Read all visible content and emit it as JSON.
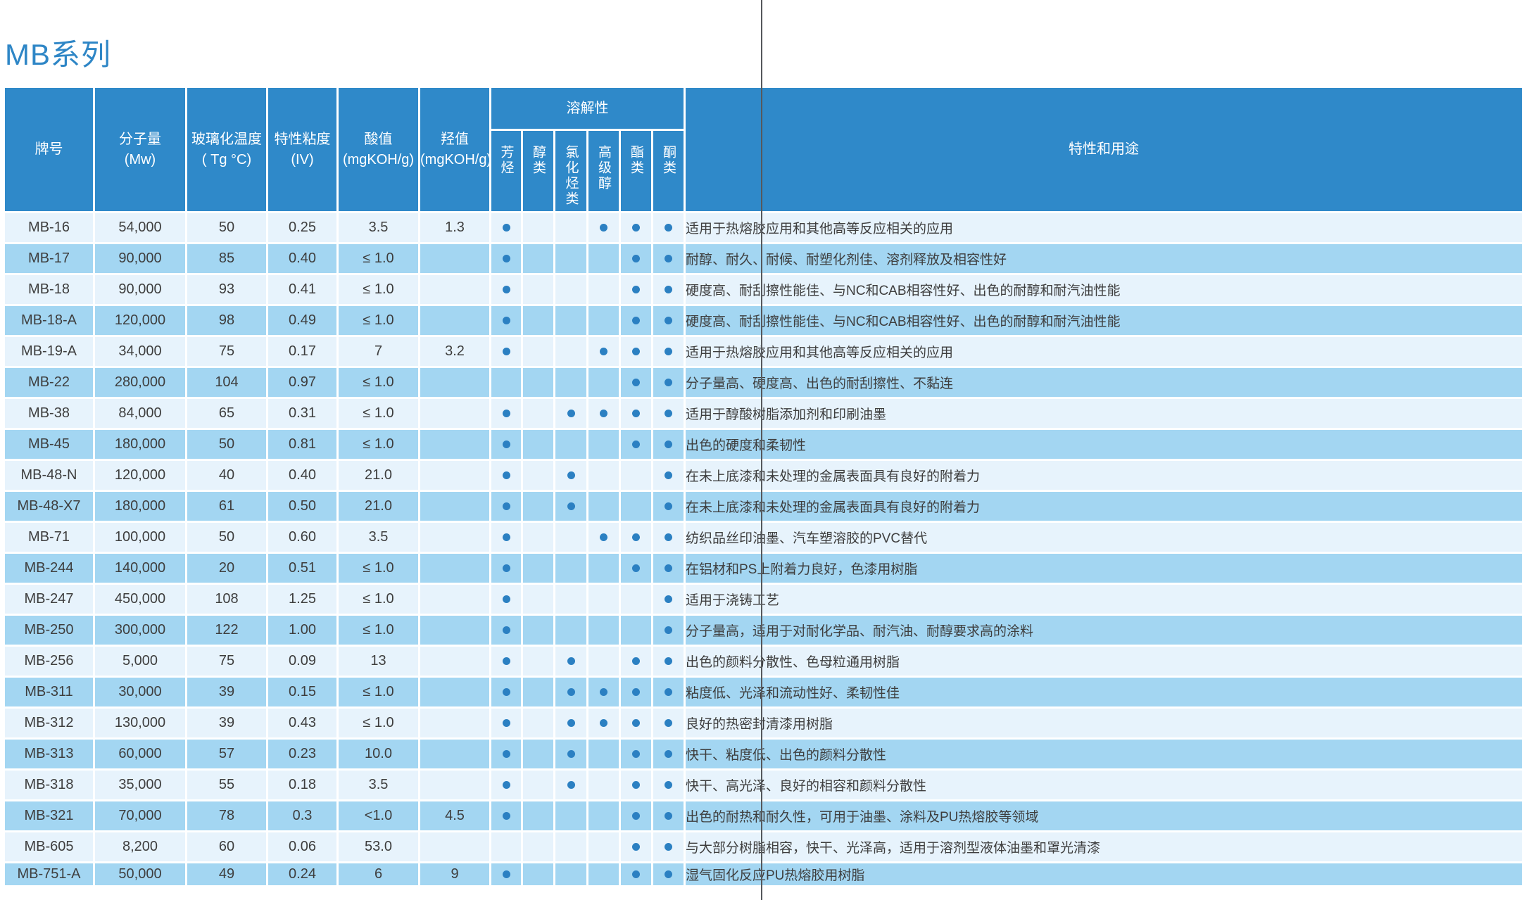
{
  "title": "MB系列",
  "colors": {
    "header_blue": "#2F89C9",
    "row_light": "#E7F3FC",
    "row_dark": "#A3D6F2",
    "dot_blue": "#2B80C2",
    "title_blue": "#2E86C6",
    "fold_line_gray": "#55585C",
    "cell_text": "#3E3E3E"
  },
  "table": {
    "headers": {
      "grade": "牌号",
      "mw": "分子量\n(Mw)",
      "tg": "玻璃化温度\n( Tg °C)",
      "iv": "特性粘度\n(IV)",
      "acid": "酸值\n(mgKOH/g)",
      "oh": "羟值\n(mgKOH/g)",
      "solubility": "溶解性",
      "solubility_cols": [
        "芳烃",
        "醇类",
        "氯化烃类",
        "高级醇",
        "酯类",
        "酮类"
      ],
      "uses": "特性和用途"
    },
    "rows": [
      {
        "grade": "MB-16",
        "mw": "54,000",
        "tg": "50",
        "iv": "0.25",
        "acid": "3.5",
        "oh": "1.3",
        "sol": [
          1,
          0,
          0,
          1,
          1,
          1
        ],
        "use": "适用于热熔胶应用和其他高等反应相关的应用"
      },
      {
        "grade": "MB-17",
        "mw": "90,000",
        "tg": "85",
        "iv": "0.40",
        "acid": "≤ 1.0",
        "oh": "",
        "sol": [
          1,
          0,
          0,
          0,
          1,
          1
        ],
        "use": "耐醇、耐久、耐候、耐塑化剂佳、溶剂释放及相容性好"
      },
      {
        "grade": "MB-18",
        "mw": "90,000",
        "tg": "93",
        "iv": "0.41",
        "acid": "≤ 1.0",
        "oh": "",
        "sol": [
          1,
          0,
          0,
          0,
          1,
          1
        ],
        "use": "硬度高、耐刮擦性能佳、与NC和CAB相容性好、出色的耐醇和耐汽油性能"
      },
      {
        "grade": "MB-18-A",
        "mw": "120,000",
        "tg": "98",
        "iv": "0.49",
        "acid": "≤ 1.0",
        "oh": "",
        "sol": [
          1,
          0,
          0,
          0,
          1,
          1
        ],
        "use": "硬度高、耐刮擦性能佳、与NC和CAB相容性好、出色的耐醇和耐汽油性能"
      },
      {
        "grade": "MB-19-A",
        "mw": "34,000",
        "tg": "75",
        "iv": "0.17",
        "acid": "7",
        "oh": "3.2",
        "sol": [
          1,
          0,
          0,
          1,
          1,
          1
        ],
        "use": "适用于热熔胶应用和其他高等反应相关的应用"
      },
      {
        "grade": "MB-22",
        "mw": "280,000",
        "tg": "104",
        "iv": "0.97",
        "acid": "≤ 1.0",
        "oh": "",
        "sol": [
          0,
          0,
          0,
          0,
          1,
          1
        ],
        "use": "分子量高、硬度高、出色的耐刮擦性、不黏连"
      },
      {
        "grade": "MB-38",
        "mw": "84,000",
        "tg": "65",
        "iv": "0.31",
        "acid": "≤ 1.0",
        "oh": "",
        "sol": [
          1,
          0,
          1,
          1,
          1,
          1
        ],
        "use": "适用于醇酸树脂添加剂和印刷油墨"
      },
      {
        "grade": "MB-45",
        "mw": "180,000",
        "tg": "50",
        "iv": "0.81",
        "acid": "≤ 1.0",
        "oh": "",
        "sol": [
          1,
          0,
          0,
          0,
          1,
          1
        ],
        "use": "出色的硬度和柔韧性"
      },
      {
        "grade": "MB-48-N",
        "mw": "120,000",
        "tg": "40",
        "iv": "0.40",
        "acid": "21.0",
        "oh": "",
        "sol": [
          1,
          0,
          1,
          0,
          0,
          1
        ],
        "use": "在未上底漆和未处理的金属表面具有良好的附着力"
      },
      {
        "grade": "MB-48-X7",
        "mw": "180,000",
        "tg": "61",
        "iv": "0.50",
        "acid": "21.0",
        "oh": "",
        "sol": [
          1,
          0,
          1,
          0,
          0,
          1
        ],
        "use": "在未上底漆和未处理的金属表面具有良好的附着力"
      },
      {
        "grade": "MB-71",
        "mw": "100,000",
        "tg": "50",
        "iv": "0.60",
        "acid": "3.5",
        "oh": "",
        "sol": [
          1,
          0,
          0,
          1,
          1,
          1
        ],
        "use": "纺织品丝印油墨、汽车塑溶胶的PVC替代"
      },
      {
        "grade": "MB-244",
        "mw": "140,000",
        "tg": "20",
        "iv": "0.51",
        "acid": "≤ 1.0",
        "oh": "",
        "sol": [
          1,
          0,
          0,
          0,
          1,
          1
        ],
        "use": "在铝材和PS上附着力良好，色漆用树脂"
      },
      {
        "grade": "MB-247",
        "mw": "450,000",
        "tg": "108",
        "iv": "1.25",
        "acid": "≤ 1.0",
        "oh": "",
        "sol": [
          1,
          0,
          0,
          0,
          0,
          1
        ],
        "use": "适用于浇铸工艺"
      },
      {
        "grade": "MB-250",
        "mw": "300,000",
        "tg": "122",
        "iv": "1.00",
        "acid": "≤ 1.0",
        "oh": "",
        "sol": [
          1,
          0,
          0,
          0,
          0,
          1
        ],
        "use": "分子量高，适用于对耐化学品、耐汽油、耐醇要求高的涂料"
      },
      {
        "grade": "MB-256",
        "mw": "5,000",
        "tg": "75",
        "iv": "0.09",
        "acid": "13",
        "oh": "",
        "sol": [
          1,
          0,
          1,
          0,
          1,
          1
        ],
        "use": "出色的颜料分散性、色母粒通用树脂"
      },
      {
        "grade": "MB-311",
        "mw": "30,000",
        "tg": "39",
        "iv": "0.15",
        "acid": "≤ 1.0",
        "oh": "",
        "sol": [
          1,
          0,
          1,
          1,
          1,
          1
        ],
        "use": "粘度低、光泽和流动性好、柔韧性佳"
      },
      {
        "grade": "MB-312",
        "mw": "130,000",
        "tg": "39",
        "iv": "0.43",
        "acid": "≤ 1.0",
        "oh": "",
        "sol": [
          1,
          0,
          1,
          1,
          1,
          1
        ],
        "use": "良好的热密封清漆用树脂"
      },
      {
        "grade": "MB-313",
        "mw": "60,000",
        "tg": "57",
        "iv": "0.23",
        "acid": "10.0",
        "oh": "",
        "sol": [
          1,
          0,
          1,
          0,
          1,
          1
        ],
        "use": "快干、粘度低、出色的颜料分散性"
      },
      {
        "grade": "MB-318",
        "mw": "35,000",
        "tg": "55",
        "iv": "0.18",
        "acid": "3.5",
        "oh": "",
        "sol": [
          1,
          0,
          1,
          0,
          1,
          1
        ],
        "use": "快干、高光泽、良好的相容和颜料分散性"
      },
      {
        "grade": "MB-321",
        "mw": "70,000",
        "tg": "78",
        "iv": "0.3",
        "acid": "<1.0",
        "oh": "4.5",
        "sol": [
          1,
          0,
          0,
          0,
          1,
          1
        ],
        "use": "出色的耐热和耐久性，可用于油墨、涂料及PU热熔胶等领域"
      },
      {
        "grade": "MB-605",
        "mw": "8,200",
        "tg": "60",
        "iv": "0.06",
        "acid": "53.0",
        "oh": "",
        "sol": [
          0,
          0,
          0,
          0,
          1,
          1
        ],
        "use": "与大部分树脂相容，快干、光泽高，适用于溶剂型液体油墨和罩光清漆"
      },
      {
        "grade": "MB-751-A",
        "mw": "50,000",
        "tg": "49",
        "iv": "0.24",
        "acid": "6",
        "oh": "9",
        "sol": [
          1,
          0,
          0,
          0,
          1,
          1
        ],
        "use": "湿气固化反应PU热熔胶用树脂"
      }
    ]
  }
}
